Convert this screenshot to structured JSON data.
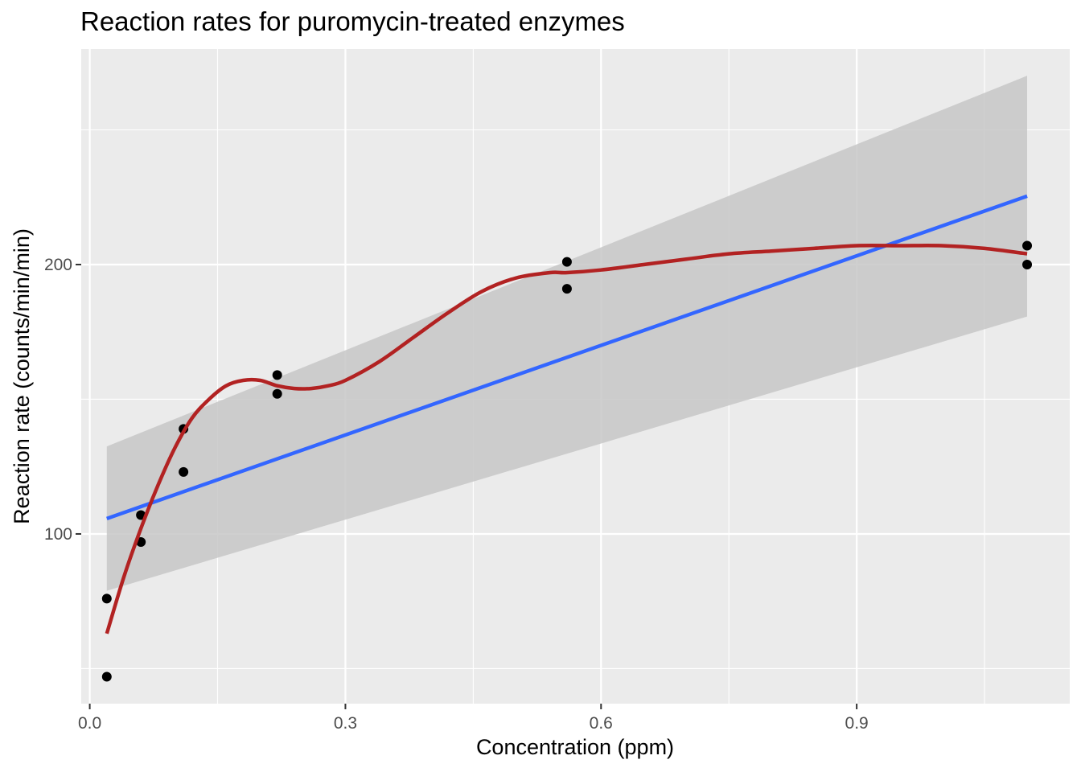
{
  "chart_data": {
    "type": "scatter",
    "title": "Reaction rates for puromycin-treated enzymes",
    "xlabel": "Concentration (ppm)",
    "ylabel": "Reaction rate (counts/min/min)",
    "xlim": [
      -0.01,
      1.15
    ],
    "ylim": [
      37,
      280
    ],
    "x_ticks": [
      0.0,
      0.3,
      0.6,
      0.9
    ],
    "x_tick_labels": [
      "0.0",
      "0.3",
      "0.6",
      "0.9"
    ],
    "y_ticks": [
      100,
      200
    ],
    "y_tick_labels": [
      "100",
      "200"
    ],
    "grid": true,
    "colors": {
      "panel": "#ebebeb",
      "grid": "#ffffff",
      "points": "#000000",
      "linear_fit": "#3366ff",
      "ribbon": "#c7c7c7",
      "smooth_fit": "#b22222"
    },
    "points": {
      "x": [
        0.02,
        0.02,
        0.06,
        0.06,
        0.11,
        0.11,
        0.22,
        0.22,
        0.56,
        0.56,
        1.1,
        1.1
      ],
      "y": [
        76,
        47,
        97,
        107,
        123,
        139,
        159,
        152,
        191,
        201,
        207,
        200
      ]
    },
    "linear_fit": {
      "x": [
        0.02,
        1.1
      ],
      "y": [
        105.7,
        225.4
      ],
      "ribbon_lower": [
        78.9,
        180.7
      ],
      "ribbon_upper": [
        132.5,
        270.1
      ]
    },
    "smooth_fit": {
      "x": [
        0.02,
        0.04,
        0.06,
        0.08,
        0.1,
        0.12,
        0.14,
        0.16,
        0.18,
        0.2,
        0.22,
        0.24,
        0.26,
        0.28,
        0.3,
        0.34,
        0.38,
        0.42,
        0.46,
        0.5,
        0.54,
        0.56,
        0.6,
        0.65,
        0.7,
        0.75,
        0.8,
        0.85,
        0.9,
        0.95,
        1.0,
        1.05,
        1.1
      ],
      "y": [
        63,
        84,
        102,
        118,
        132,
        143,
        150,
        155,
        157,
        157,
        155,
        154,
        154,
        155,
        157,
        164,
        173,
        182,
        190,
        195,
        197,
        197,
        198,
        200,
        202,
        204,
        205,
        206,
        207,
        207,
        207,
        206,
        204
      ]
    }
  }
}
